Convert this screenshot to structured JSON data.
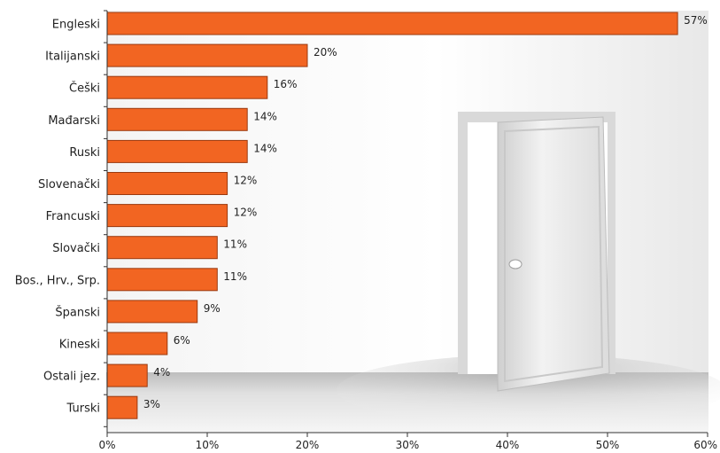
{
  "chart_data": {
    "type": "bar",
    "orientation": "horizontal",
    "categories": [
      "Engleski",
      "Italijanski",
      "Češki",
      "Mađarski",
      "Ruski",
      "Slovenački",
      "Francuski",
      "Slovački",
      "Bos., Hrv., Srp.",
      "Španski",
      "Kineski",
      "Ostali jez.",
      "Turski"
    ],
    "values": [
      57,
      20,
      16,
      14,
      14,
      12,
      12,
      11,
      11,
      9,
      6,
      4,
      3
    ],
    "value_labels": [
      "57%",
      "20%",
      "16%",
      "14%",
      "14%",
      "12%",
      "12%",
      "11%",
      "11%",
      "9%",
      "6%",
      "4%",
      "3%"
    ],
    "xlim": [
      0,
      60
    ],
    "x_ticks": [
      0,
      10,
      20,
      30,
      40,
      50,
      60
    ],
    "x_tick_labels": [
      "0%",
      "10%",
      "20%",
      "30%",
      "40%",
      "50%",
      "60%"
    ],
    "grid": false,
    "legend": "none",
    "colors": {
      "bar_fill": "#f26522",
      "bar_stroke": "#9a3a10",
      "axis": "#333333"
    },
    "background_image": "open-door-room"
  }
}
